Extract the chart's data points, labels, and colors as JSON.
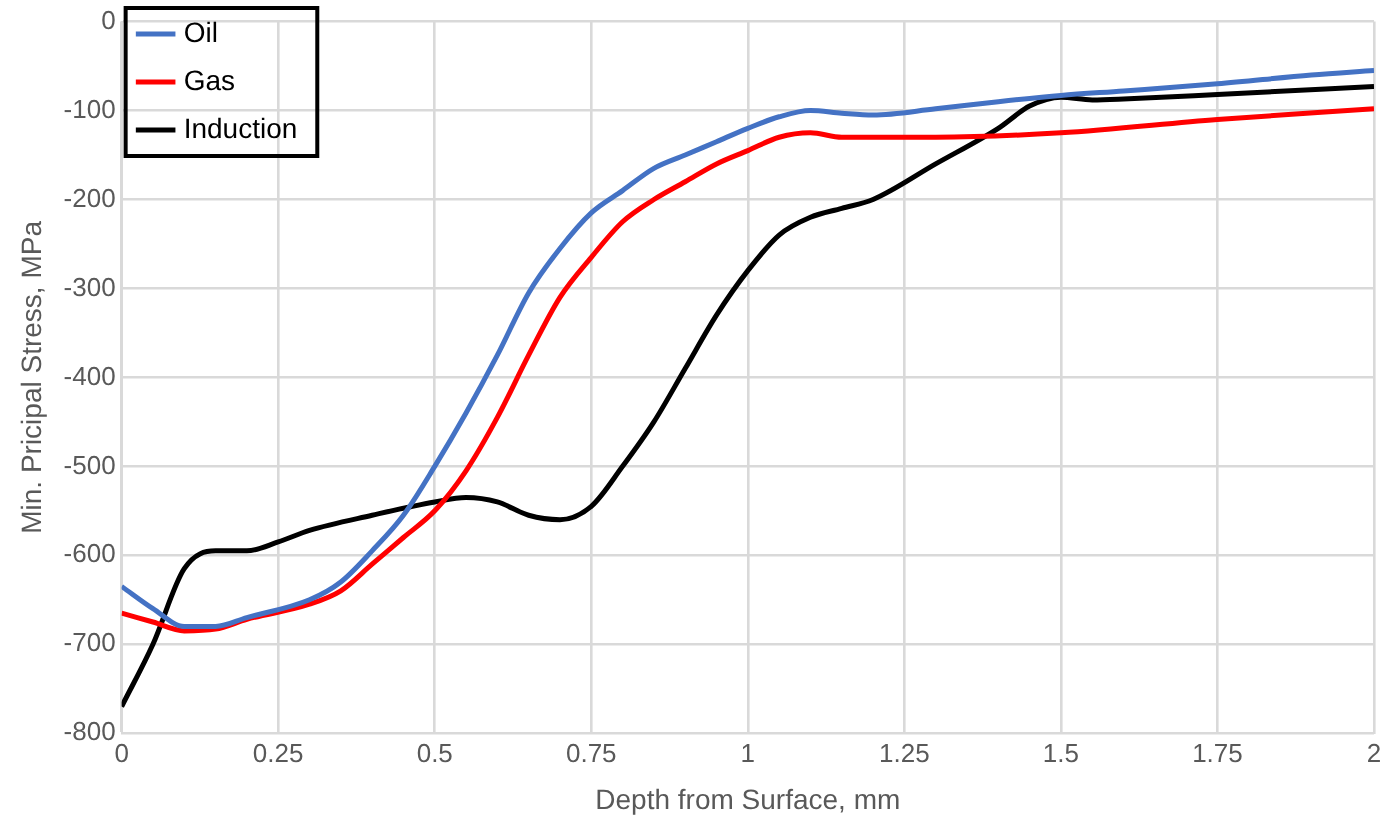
{
  "chart_data": {
    "type": "line",
    "xlabel": "Depth from Surface, mm",
    "ylabel": "Min. Pricipal Stress, MPa",
    "xlim": [
      0,
      2
    ],
    "xticks": [
      0,
      0.25,
      0.5,
      0.75,
      1,
      1.25,
      1.5,
      1.75,
      2
    ],
    "ylim": [
      -800,
      0
    ],
    "yticks": [
      -800,
      -700,
      -600,
      -500,
      -400,
      -300,
      -200,
      -100,
      0
    ],
    "grid": true,
    "legend": "top left",
    "marker": "none",
    "line_style": "solid",
    "series": [
      {
        "name": "Oil",
        "color": "#4472c4",
        "x": [
          0,
          0.05,
          0.1,
          0.15,
          0.2,
          0.3,
          0.35,
          0.4,
          0.45,
          0.5,
          0.55,
          0.6,
          0.65,
          0.7,
          0.75,
          0.8,
          0.85,
          0.9,
          0.95,
          1.0,
          1.05,
          1.1,
          1.15,
          1.2,
          1.3,
          1.4,
          1.5,
          1.6,
          1.75,
          1.9,
          2.0
        ],
        "values": [
          -635,
          -660,
          -680,
          -680,
          -670,
          -650,
          -630,
          -595,
          -555,
          -500,
          -440,
          -375,
          -305,
          -255,
          -215,
          -190,
          -165,
          -150,
          -135,
          -120,
          -107,
          -100,
          -103,
          -105,
          -98,
          -90,
          -83,
          -78,
          -70,
          -60,
          -55
        ]
      },
      {
        "name": "Gas",
        "color": "#ff0000",
        "x": [
          0,
          0.05,
          0.1,
          0.15,
          0.2,
          0.3,
          0.35,
          0.4,
          0.45,
          0.5,
          0.55,
          0.6,
          0.65,
          0.7,
          0.75,
          0.8,
          0.85,
          0.9,
          0.95,
          1.0,
          1.05,
          1.1,
          1.15,
          1.2,
          1.3,
          1.5,
          1.75,
          2.0
        ],
        "values": [
          -665,
          -675,
          -685,
          -683,
          -672,
          -655,
          -640,
          -610,
          -580,
          -550,
          -505,
          -445,
          -375,
          -310,
          -265,
          -225,
          -200,
          -180,
          -160,
          -145,
          -130,
          -125,
          -130,
          -130,
          -130,
          -125,
          -110,
          -98
        ]
      },
      {
        "name": "Induction",
        "color": "#000000",
        "x": [
          0,
          0.05,
          0.1,
          0.15,
          0.2,
          0.25,
          0.3,
          0.4,
          0.5,
          0.55,
          0.6,
          0.65,
          0.7,
          0.75,
          0.8,
          0.85,
          0.9,
          0.95,
          1.0,
          1.05,
          1.1,
          1.15,
          1.2,
          1.3,
          1.4,
          1.45,
          1.5,
          1.55,
          1.6,
          1.75,
          2.0
        ],
        "values": [
          -770,
          -700,
          -615,
          -595,
          -595,
          -585,
          -572,
          -555,
          -540,
          -535,
          -540,
          -555,
          -560,
          -545,
          -500,
          -450,
          -390,
          -330,
          -280,
          -240,
          -220,
          -210,
          -200,
          -160,
          -120,
          -95,
          -85,
          -88,
          -87,
          -82,
          -73
        ]
      }
    ]
  }
}
